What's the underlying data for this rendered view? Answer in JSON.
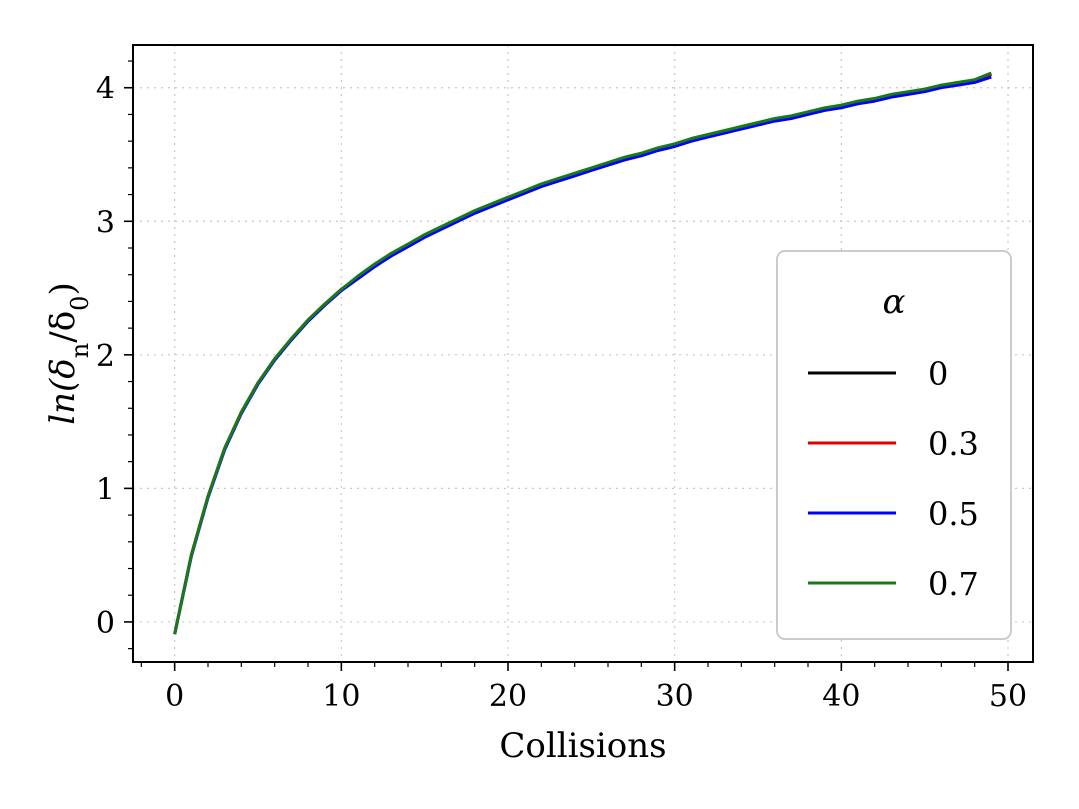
{
  "chart_data": {
    "type": "line",
    "xlabel": "Collisions",
    "ylabel": "ln(δn/δ0)",
    "xlim": [
      -2.5,
      51.5
    ],
    "ylim": [
      -0.3,
      4.32
    ],
    "xticks": [
      0,
      10,
      20,
      30,
      40,
      50
    ],
    "yticks": [
      0,
      1,
      2,
      3,
      4
    ],
    "grid": true,
    "legend": {
      "title": "α",
      "placement": "center-right"
    },
    "x": [
      0,
      1,
      2,
      3,
      4,
      5,
      6,
      7,
      8,
      9,
      10,
      11,
      12,
      13,
      14,
      15,
      16,
      17,
      18,
      19,
      20,
      21,
      22,
      23,
      24,
      25,
      26,
      27,
      28,
      29,
      30,
      31,
      32,
      33,
      34,
      35,
      36,
      37,
      38,
      39,
      40,
      41,
      42,
      43,
      44,
      45,
      46,
      47,
      48,
      49
    ],
    "series": [
      {
        "name": "0",
        "color": "#000000",
        "values": [
          -0.09,
          0.5,
          0.94,
          1.3,
          1.57,
          1.79,
          1.97,
          2.12,
          2.26,
          2.38,
          2.49,
          2.58,
          2.67,
          2.75,
          2.82,
          2.89,
          2.95,
          3.01,
          3.07,
          3.12,
          3.17,
          3.22,
          3.27,
          3.31,
          3.35,
          3.39,
          3.43,
          3.47,
          3.5,
          3.54,
          3.57,
          3.61,
          3.64,
          3.67,
          3.7,
          3.73,
          3.76,
          3.78,
          3.81,
          3.84,
          3.86,
          3.89,
          3.91,
          3.94,
          3.96,
          3.98,
          4.01,
          4.03,
          4.05,
          4.1
        ]
      },
      {
        "name": "0.3",
        "color": "#e00000",
        "values": [
          -0.09,
          0.5,
          0.94,
          1.3,
          1.57,
          1.79,
          1.97,
          2.12,
          2.26,
          2.38,
          2.49,
          2.58,
          2.67,
          2.75,
          2.82,
          2.89,
          2.95,
          3.01,
          3.07,
          3.12,
          3.17,
          3.22,
          3.27,
          3.31,
          3.35,
          3.39,
          3.43,
          3.47,
          3.5,
          3.54,
          3.57,
          3.61,
          3.64,
          3.67,
          3.7,
          3.73,
          3.76,
          3.78,
          3.81,
          3.84,
          3.86,
          3.89,
          3.91,
          3.94,
          3.96,
          3.98,
          4.01,
          4.03,
          4.05,
          4.1
        ]
      },
      {
        "name": "0.5",
        "color": "#0000ff",
        "values": [
          -0.09,
          0.49,
          0.93,
          1.29,
          1.56,
          1.78,
          1.96,
          2.11,
          2.25,
          2.37,
          2.48,
          2.57,
          2.66,
          2.74,
          2.81,
          2.88,
          2.94,
          3.0,
          3.06,
          3.11,
          3.16,
          3.21,
          3.26,
          3.3,
          3.34,
          3.38,
          3.42,
          3.46,
          3.49,
          3.53,
          3.56,
          3.6,
          3.63,
          3.66,
          3.69,
          3.72,
          3.75,
          3.77,
          3.8,
          3.83,
          3.85,
          3.88,
          3.9,
          3.93,
          3.95,
          3.97,
          4.0,
          4.02,
          4.04,
          4.08
        ]
      },
      {
        "name": "0.7",
        "color": "#1a7a1a",
        "values": [
          -0.09,
          0.5,
          0.94,
          1.3,
          1.57,
          1.79,
          1.97,
          2.12,
          2.26,
          2.38,
          2.49,
          2.59,
          2.68,
          2.76,
          2.83,
          2.9,
          2.96,
          3.02,
          3.08,
          3.13,
          3.18,
          3.23,
          3.28,
          3.32,
          3.36,
          3.4,
          3.44,
          3.48,
          3.51,
          3.55,
          3.58,
          3.62,
          3.65,
          3.68,
          3.71,
          3.74,
          3.77,
          3.79,
          3.82,
          3.85,
          3.87,
          3.9,
          3.92,
          3.95,
          3.97,
          3.99,
          4.02,
          4.04,
          4.06,
          4.11
        ]
      }
    ]
  }
}
